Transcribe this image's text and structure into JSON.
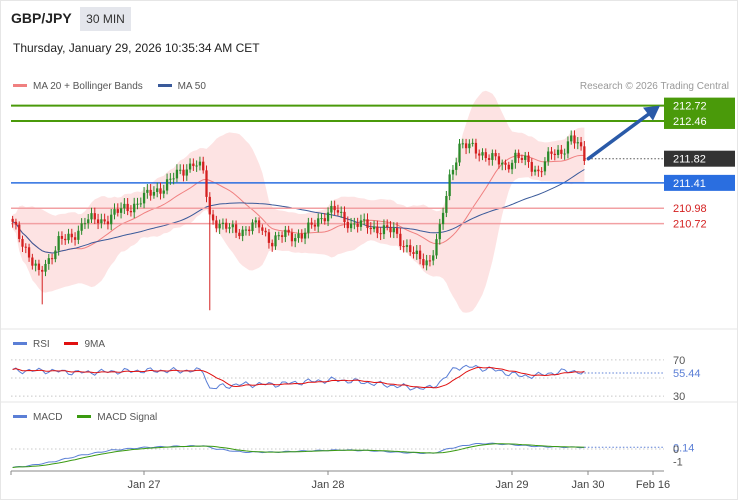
{
  "header": {
    "symbol": "GBP/JPY",
    "timeframe": "30 MIN",
    "datetime": "Thursday, January 29, 2026 10:35:34 AM CET",
    "credit": "Research © 2026 Trading Central"
  },
  "legends": {
    "main": [
      {
        "label": "MA 20 + Bollinger Bands",
        "color": "#f08080"
      },
      {
        "label": "MA 50",
        "color": "#3a5a9a"
      }
    ],
    "rsi": [
      {
        "label": "RSI",
        "color": "#5b7fd6"
      },
      {
        "label": "9MA",
        "color": "#e01010"
      }
    ],
    "macd": [
      {
        "label": "MACD",
        "color": "#5b7fd6"
      },
      {
        "label": "MACD Signal",
        "color": "#3a9a10"
      }
    ]
  },
  "colors": {
    "resistance": "#4a9a0a",
    "current": "#333333",
    "pivot": "#2a6ee0",
    "support": "#e0555a",
    "bollinger": "#fde0e0",
    "candle_up": "#2a8a2a",
    "candle_down": "#d42020",
    "arrow": "#2a5aa8"
  },
  "chart_data": [
    {
      "type": "candlestick",
      "ylim": [
        209.0,
        212.9
      ],
      "x_ticks": [
        "Jan 27",
        "Jan 28",
        "Jan 29",
        "Jan 30",
        "Feb 16"
      ],
      "levels": [
        {
          "label": "212.72",
          "value": 212.72,
          "kind": "resistance"
        },
        {
          "label": "212.46",
          "value": 212.46,
          "kind": "resistance"
        },
        {
          "label": "211.82",
          "value": 211.82,
          "kind": "current"
        },
        {
          "label": "211.41",
          "value": 211.41,
          "kind": "pivot"
        },
        {
          "label": "210.98",
          "value": 210.98,
          "kind": "support"
        },
        {
          "label": "210.72",
          "value": 210.72,
          "kind": "support"
        }
      ],
      "close_anchors": [
        [
          0,
          210.7
        ],
        [
          4,
          210.3
        ],
        [
          8,
          209.85
        ],
        [
          11,
          210.1
        ],
        [
          14,
          210.45
        ],
        [
          18,
          210.45
        ],
        [
          22,
          210.8
        ],
        [
          27,
          210.75
        ],
        [
          31,
          210.9
        ],
        [
          36,
          211.0
        ],
        [
          41,
          211.2
        ],
        [
          46,
          211.35
        ],
        [
          51,
          211.6
        ],
        [
          55,
          211.75
        ],
        [
          58,
          211.6
        ],
        [
          60,
          210.85
        ],
        [
          64,
          210.65
        ],
        [
          70,
          210.6
        ],
        [
          75,
          210.7
        ],
        [
          79,
          210.4
        ],
        [
          83,
          210.55
        ],
        [
          88,
          210.5
        ],
        [
          93,
          210.8
        ],
        [
          98,
          210.95
        ],
        [
          103,
          210.7
        ],
        [
          108,
          210.7
        ],
        [
          112,
          210.6
        ],
        [
          116,
          210.6
        ],
        [
          120,
          210.3
        ],
        [
          124,
          210.1
        ],
        [
          127,
          210.1
        ],
        [
          130,
          210.6
        ],
        [
          133,
          211.5
        ],
        [
          136,
          212.05
        ],
        [
          140,
          212.0
        ],
        [
          145,
          211.85
        ],
        [
          150,
          211.7
        ],
        [
          153,
          211.85
        ],
        [
          157,
          211.75
        ],
        [
          160,
          211.6
        ],
        [
          164,
          211.9
        ],
        [
          167,
          211.95
        ],
        [
          170,
          212.15
        ],
        [
          172,
          212.05
        ],
        [
          174,
          211.85
        ]
      ],
      "projection": {
        "from": 211.82,
        "to": 212.72
      }
    },
    {
      "type": "line",
      "name": "RSI",
      "series": [
        {
          "name": "RSI"
        },
        {
          "name": "9MA"
        }
      ],
      "ylim": [
        28,
        72
      ],
      "y_ticks": [
        70,
        30
      ],
      "current_value": "55.44",
      "value_anchors": [
        [
          0,
          58
        ],
        [
          10,
          58
        ],
        [
          20,
          56
        ],
        [
          30,
          57
        ],
        [
          40,
          58
        ],
        [
          50,
          58
        ],
        [
          58,
          58
        ],
        [
          60,
          38
        ],
        [
          64,
          41
        ],
        [
          70,
          43
        ],
        [
          80,
          43
        ],
        [
          90,
          46
        ],
        [
          98,
          48
        ],
        [
          105,
          46
        ],
        [
          112,
          43
        ],
        [
          120,
          40
        ],
        [
          126,
          38
        ],
        [
          130,
          45
        ],
        [
          135,
          62
        ],
        [
          140,
          62
        ],
        [
          145,
          60
        ],
        [
          150,
          56
        ],
        [
          155,
          52
        ],
        [
          160,
          53
        ],
        [
          165,
          56
        ],
        [
          170,
          58
        ],
        [
          174,
          55.44
        ]
      ]
    },
    {
      "type": "line",
      "name": "MACD",
      "series": [
        {
          "name": "MACD"
        },
        {
          "name": "MACD Signal"
        }
      ],
      "ylim": [
        -1.7,
        1.7
      ],
      "y_ticks": [
        0,
        -1
      ],
      "current_value": "0.14",
      "value_anchors": [
        [
          0,
          -1.5
        ],
        [
          5,
          -1.35
        ],
        [
          12,
          -1.05
        ],
        [
          20,
          -0.55
        ],
        [
          30,
          -0.1
        ],
        [
          40,
          0.12
        ],
        [
          50,
          0.22
        ],
        [
          58,
          0.26
        ],
        [
          62,
          0.0
        ],
        [
          70,
          -0.25
        ],
        [
          80,
          -0.25
        ],
        [
          90,
          -0.15
        ],
        [
          100,
          -0.08
        ],
        [
          110,
          -0.15
        ],
        [
          120,
          -0.3
        ],
        [
          128,
          -0.35
        ],
        [
          133,
          0.05
        ],
        [
          140,
          0.4
        ],
        [
          145,
          0.45
        ],
        [
          152,
          0.35
        ],
        [
          160,
          0.2
        ],
        [
          168,
          0.15
        ],
        [
          174,
          0.14
        ]
      ]
    }
  ]
}
